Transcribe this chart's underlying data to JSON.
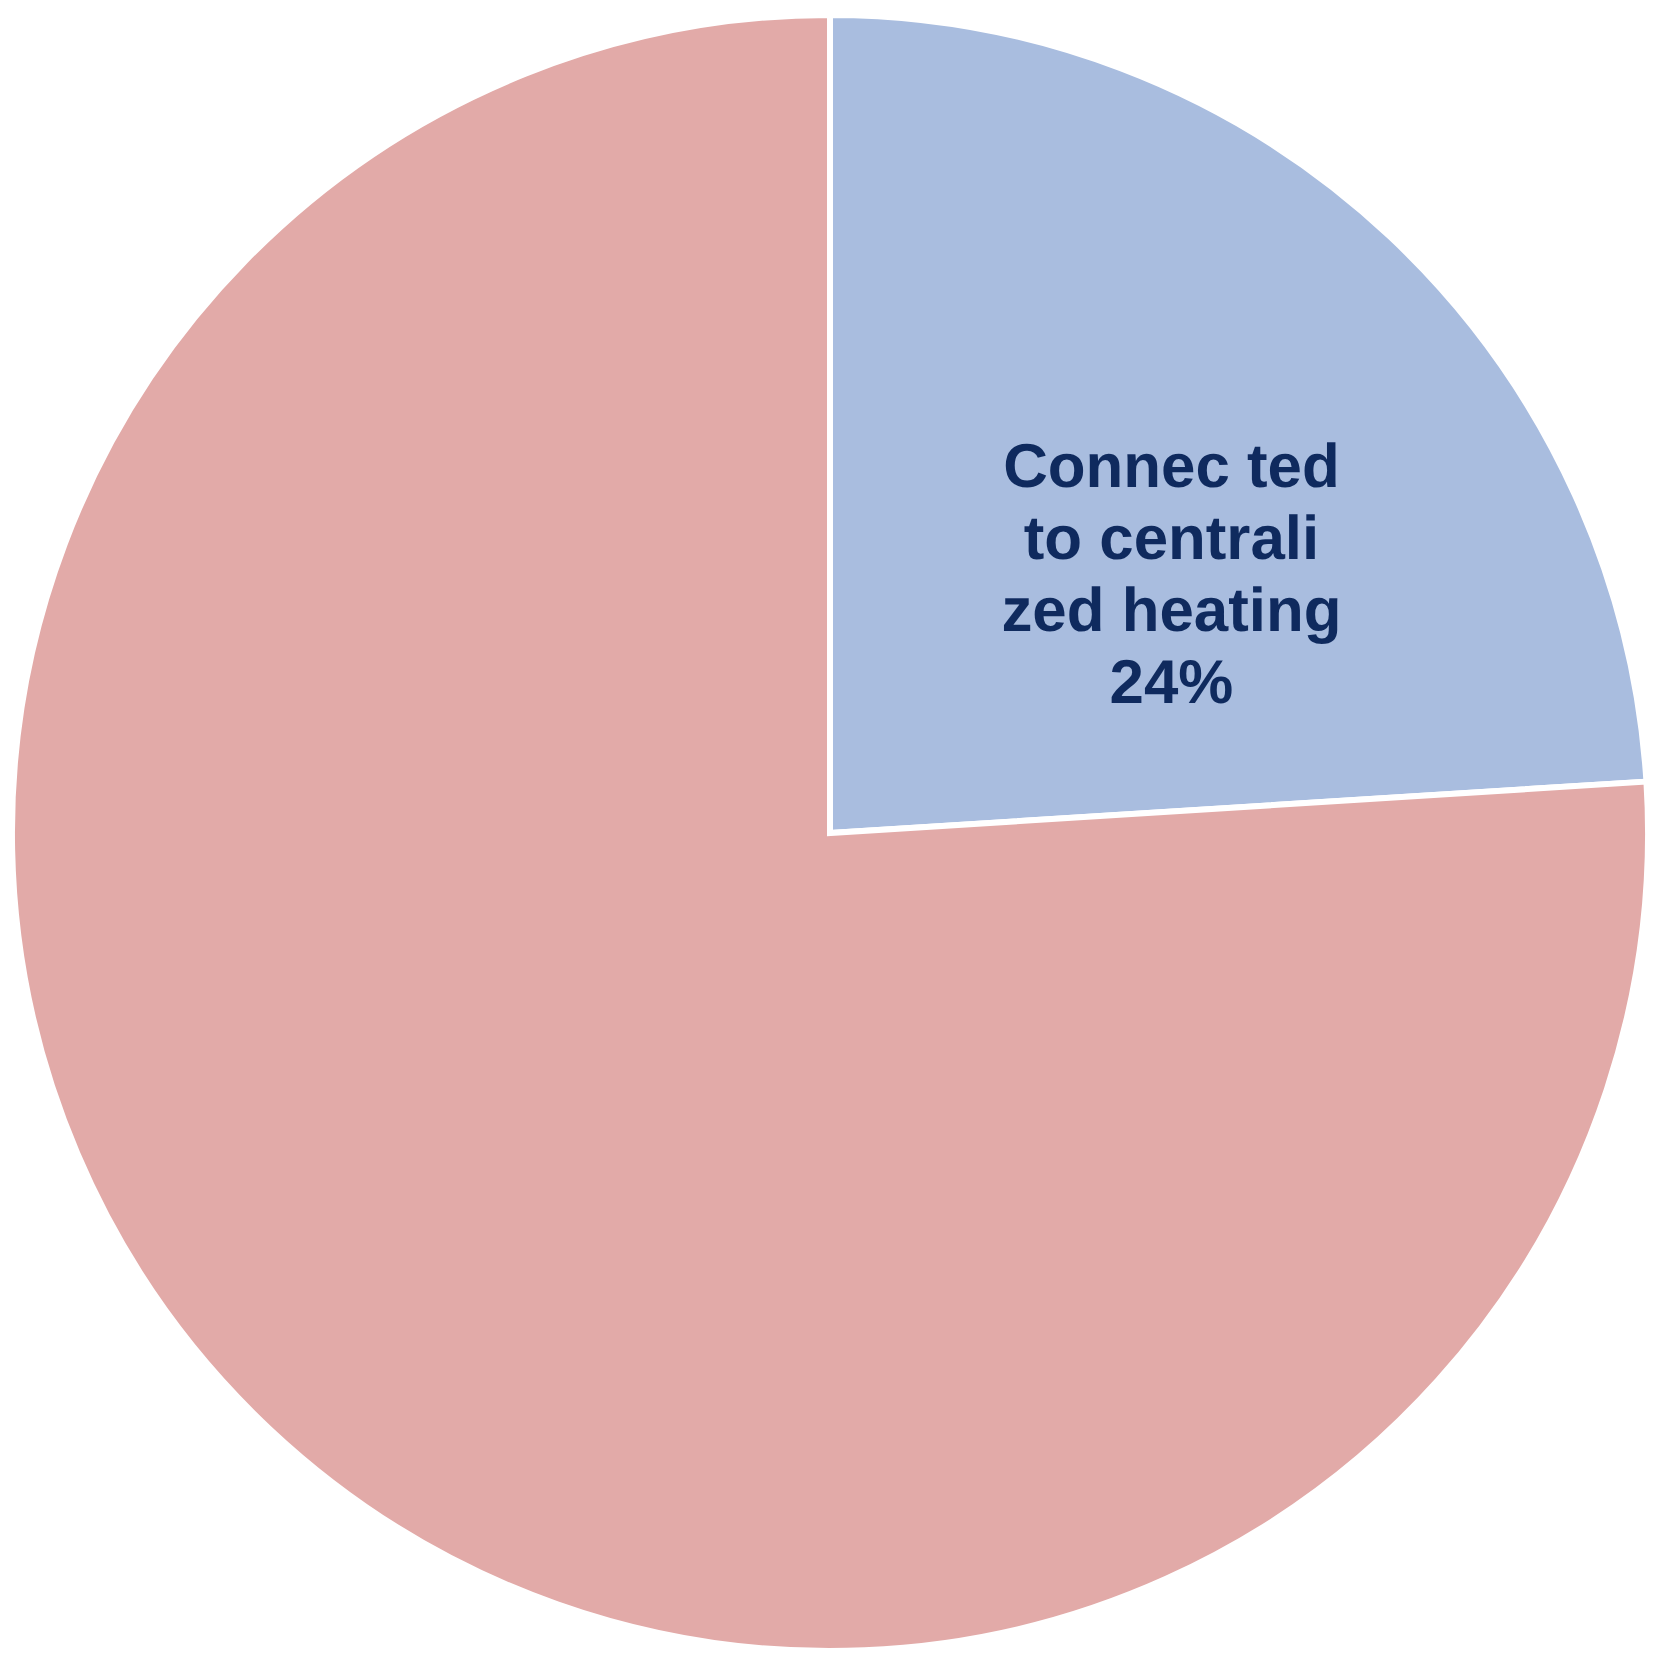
{
  "chart_data": {
    "type": "pie",
    "categories": [
      "Connec ted to centrali zed heating",
      null
    ],
    "values": [
      24,
      76
    ],
    "value_labels": [
      "24%",
      null
    ],
    "colors": [
      "#a9bddf",
      "#e2aaa8"
    ],
    "legend": false
  }
}
